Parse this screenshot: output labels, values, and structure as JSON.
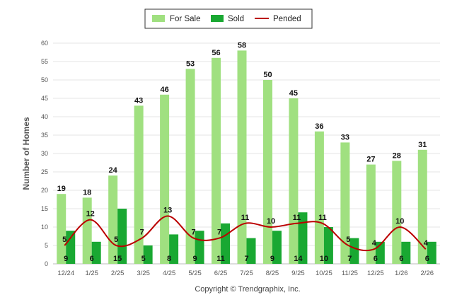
{
  "chart_data": {
    "type": "bar",
    "title": "",
    "xlabel": "",
    "ylabel": "Number of Homes",
    "ylim": [
      0,
      60
    ],
    "yticks": [
      0,
      5,
      10,
      15,
      20,
      25,
      30,
      35,
      40,
      45,
      50,
      55,
      60
    ],
    "grid": true,
    "legend_position": "top-center",
    "categories": [
      "12/24",
      "1/25",
      "2/25",
      "3/25",
      "4/25",
      "5/25",
      "6/25",
      "7/25",
      "8/25",
      "9/25",
      "10/25",
      "11/25",
      "12/25",
      "1/26",
      "2/26"
    ],
    "series": [
      {
        "name": "For Sale",
        "kind": "bar",
        "color": "#a0e080",
        "values": [
          19,
          18,
          24,
          43,
          46,
          53,
          56,
          58,
          50,
          45,
          36,
          33,
          27,
          28,
          31
        ]
      },
      {
        "name": "Sold",
        "kind": "bar",
        "color": "#19a832",
        "values": [
          9,
          6,
          15,
          5,
          8,
          9,
          11,
          7,
          9,
          14,
          10,
          7,
          6,
          6,
          6
        ]
      },
      {
        "name": "Pended",
        "kind": "line",
        "color": "#bb0000",
        "values": [
          5,
          12,
          5,
          7,
          13,
          7,
          7,
          11,
          10,
          11,
          11,
          5,
          4,
          10,
          4
        ]
      }
    ],
    "footer": "Copyright © Trendgraphix, Inc."
  }
}
